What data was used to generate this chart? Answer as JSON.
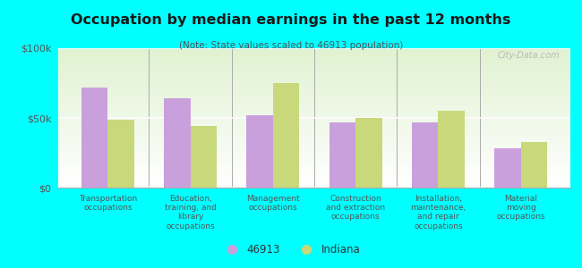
{
  "title": "Occupation by median earnings in the past 12 months",
  "subtitle": "(Note: State values scaled to 46913 population)",
  "categories": [
    "Transportation\noccupations",
    "Education,\ntraining, and\nlibrary\noccupations",
    "Management\noccupations",
    "Construction\nand extraction\noccupations",
    "Installation,\nmaintenance,\nand repair\noccupations",
    "Material\nmoving\noccupations"
  ],
  "values_46913": [
    72000,
    64000,
    52000,
    47000,
    47000,
    28000
  ],
  "values_indiana": [
    49000,
    44000,
    75000,
    50000,
    55000,
    33000
  ],
  "color_46913": "#c9a0dc",
  "color_indiana": "#c8d87a",
  "ylim": [
    0,
    100000
  ],
  "ytick_labels": [
    "$0",
    "$50k",
    "$100k"
  ],
  "background_color": "#00ffff",
  "legend_label_1": "46913",
  "legend_label_2": "Indiana",
  "watermark": "City-Data.com"
}
